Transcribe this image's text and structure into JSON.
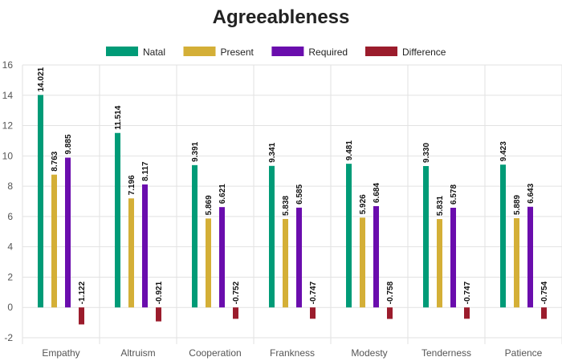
{
  "chart_data": {
    "type": "bar",
    "title": "Agreeableness",
    "categories": [
      "Empathy",
      "Altruism",
      "Cooperation",
      "Frankness",
      "Modesty",
      "Tenderness",
      "Patience"
    ],
    "series": [
      {
        "name": "Natal",
        "color": "#009b77",
        "values": [
          14.021,
          11.514,
          9.391,
          9.341,
          9.481,
          9.33,
          9.423
        ],
        "labels": [
          "14.021",
          "11.514",
          "9.391",
          "9.341",
          "9.481",
          "9.330",
          "9.423"
        ]
      },
      {
        "name": "Present",
        "color": "#d4af37",
        "values": [
          8.763,
          7.196,
          5.869,
          5.838,
          5.926,
          5.831,
          5.889
        ],
        "labels": [
          "8.763",
          "7.196",
          "5.869",
          "5.838",
          "5.926",
          "5.831",
          "5.889"
        ]
      },
      {
        "name": "Required",
        "color": "#6a0dad",
        "values": [
          9.885,
          8.117,
          6.621,
          6.585,
          6.684,
          6.578,
          6.643
        ],
        "labels": [
          "9.885",
          "8.117",
          "6.621",
          "6.585",
          "6.684",
          "6.578",
          "6.643"
        ]
      },
      {
        "name": "Difference",
        "color": "#9b1c2c",
        "values": [
          -1.122,
          -0.921,
          -0.752,
          -0.747,
          -0.758,
          -0.747,
          -0.754
        ],
        "labels": [
          "-1.122",
          "-0.921",
          "-0.752",
          "-0.747",
          "-0.758",
          "-0.747",
          "-0.754"
        ]
      }
    ],
    "ylim": [
      -2,
      16
    ],
    "yticks": [
      "-2",
      "0",
      "2",
      "4",
      "6",
      "8",
      "10",
      "12",
      "14",
      "16"
    ],
    "grid": true,
    "legend_position": "top"
  }
}
